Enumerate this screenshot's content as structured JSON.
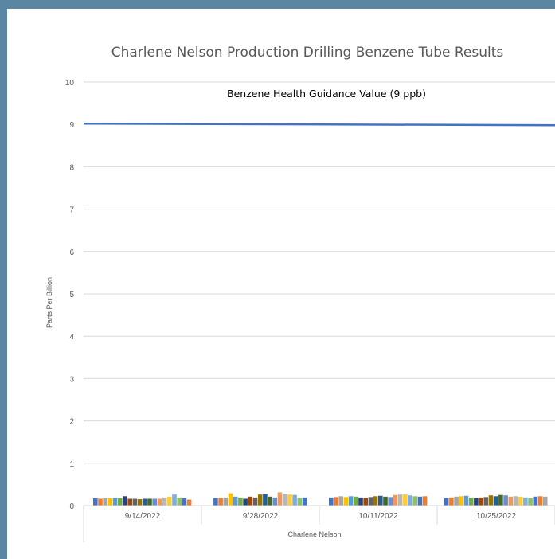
{
  "chart_data": {
    "type": "bar",
    "title": "Charlene Nelson Production Drilling Benzene Tube Results",
    "ylabel": "Parts Per Billion",
    "xlabel": "Charlene Nelson",
    "ylim": [
      0,
      10
    ],
    "yticks": [
      0,
      1,
      2,
      3,
      4,
      5,
      6,
      7,
      8,
      9,
      10
    ],
    "grid": true,
    "categories": [
      "9/14/2022",
      "9/28/2022",
      "10/11/2022",
      "10/25/2022"
    ],
    "bar_values": [
      [
        0.17,
        0.16,
        0.17,
        0.17,
        0.18,
        0.17,
        0.22,
        0.16,
        0.16,
        0.15,
        0.16,
        0.16,
        0.16,
        0.16,
        0.19,
        0.21,
        0.26,
        0.19,
        0.17,
        0.14
      ],
      [
        0.18,
        0.18,
        0.19,
        0.29,
        0.21,
        0.19,
        0.16,
        0.21,
        0.19,
        0.26,
        0.27,
        0.21,
        0.19,
        0.31,
        0.28,
        0.26,
        0.25,
        0.18,
        0.19
      ],
      [
        0.19,
        0.2,
        0.22,
        0.2,
        0.22,
        0.21,
        0.19,
        0.18,
        0.2,
        0.22,
        0.23,
        0.21,
        0.2,
        0.25,
        0.26,
        0.26,
        0.24,
        0.22,
        0.21,
        0.22
      ],
      [
        0.18,
        0.19,
        0.21,
        0.22,
        0.23,
        0.19,
        0.17,
        0.19,
        0.2,
        0.24,
        0.22,
        0.25,
        0.24,
        0.21,
        0.22,
        0.21,
        0.19,
        0.17,
        0.21,
        0.22,
        0.21
      ]
    ],
    "palette": [
      "#4472c4",
      "#ed7d31",
      "#a5a5a5",
      "#ffc000",
      "#5b9bd5",
      "#70ad47",
      "#264478",
      "#9e480e",
      "#636363",
      "#997300",
      "#255e91",
      "#43682b",
      "#698ed0",
      "#f1975a",
      "#b7b7b7",
      "#ffcd33",
      "#7cafdd",
      "#8cc168"
    ],
    "reference_line": {
      "value": 9,
      "label": "Benzene Health Guidance Value (9 ppb)",
      "color": "#4472c4"
    }
  }
}
